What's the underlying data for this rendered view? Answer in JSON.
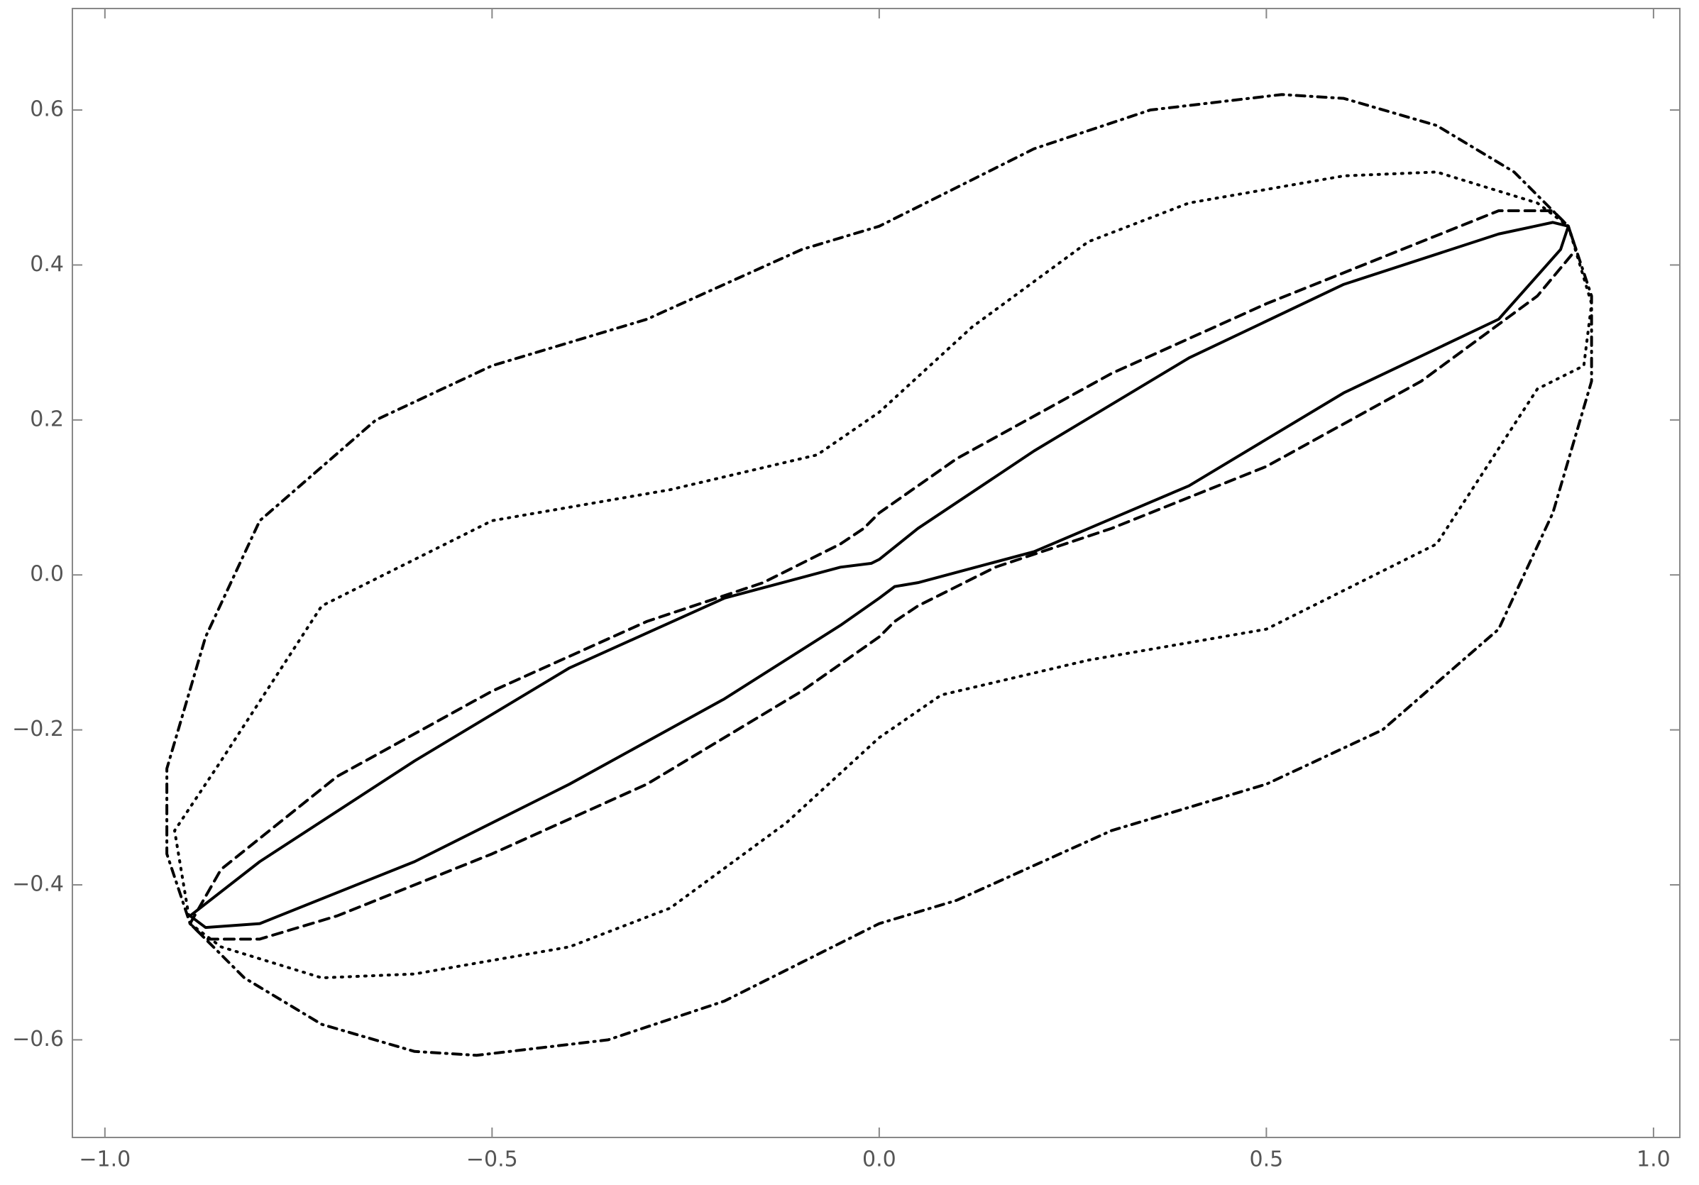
{
  "chart_data": {
    "type": "line",
    "xlim": [
      -1.042,
      1.034
    ],
    "ylim": [
      -0.726,
      0.731
    ],
    "xticks": [
      {
        "value": -1.0,
        "label": "−1.0"
      },
      {
        "value": -0.5,
        "label": "−0.5"
      },
      {
        "value": 0,
        "label": "0.0"
      },
      {
        "value": 0.5,
        "label": "0.5"
      },
      {
        "value": 1.0,
        "label": "1.0"
      }
    ],
    "yticks": [
      {
        "value": -0.6,
        "label": "−0.6"
      },
      {
        "value": -0.4,
        "label": "−0.4"
      },
      {
        "value": -0.2,
        "label": "−0.2"
      },
      {
        "value": 0,
        "label": "0.0"
      },
      {
        "value": 0.2,
        "label": "0.2"
      },
      {
        "value": 0.4,
        "label": "0.4"
      },
      {
        "value": 0.6,
        "label": "0.6"
      }
    ],
    "grid": false,
    "series": [
      {
        "color": "#000000",
        "style": "solid",
        "x": [
          -0.89,
          -0.8,
          -0.6,
          -0.4,
          -0.2,
          -0.05,
          -0.01,
          0,
          0.05,
          0.2,
          0.4,
          0.6,
          0.8,
          0.87,
          0.89,
          0.88,
          0.8,
          0.6,
          0.4,
          0.2,
          0.05,
          0.02,
          0,
          -0.05,
          -0.2,
          -0.4,
          -0.6,
          -0.8,
          -0.87,
          -0.89
        ],
        "values": [
          -0.44,
          -0.37,
          -0.24,
          -0.12,
          -0.03,
          0.01,
          0.015,
          0.02,
          0.06,
          0.16,
          0.28,
          0.375,
          0.44,
          0.455,
          0.45,
          0.42,
          0.33,
          0.235,
          0.115,
          0.03,
          -0.01,
          -0.015,
          -0.03,
          -0.065,
          -0.16,
          -0.27,
          -0.37,
          -0.45,
          -0.455,
          -0.44
        ]
      },
      {
        "color": "#000000",
        "style": "dashed",
        "x": [
          -0.89,
          -0.85,
          -0.7,
          -0.5,
          -0.3,
          -0.15,
          -0.05,
          -0.02,
          0,
          0.1,
          0.3,
          0.5,
          0.7,
          0.8,
          0.87,
          0.89,
          0.9,
          0.85,
          0.7,
          0.5,
          0.3,
          0.15,
          0.05,
          0.02,
          0,
          -0.1,
          -0.3,
          -0.5,
          -0.7,
          -0.8,
          -0.87,
          -0.89
        ],
        "values": [
          -0.45,
          -0.38,
          -0.26,
          -0.15,
          -0.06,
          -0.01,
          0.04,
          0.06,
          0.08,
          0.15,
          0.26,
          0.35,
          0.43,
          0.47,
          0.47,
          0.45,
          0.42,
          0.36,
          0.25,
          0.14,
          0.06,
          0.01,
          -0.04,
          -0.06,
          -0.08,
          -0.15,
          -0.27,
          -0.36,
          -0.44,
          -0.47,
          -0.47,
          -0.45
        ]
      },
      {
        "color": "#000000",
        "style": "dotted",
        "x": [
          -0.89,
          -0.91,
          -0.85,
          -0.72,
          -0.5,
          -0.27,
          -0.08,
          0,
          0.12,
          0.27,
          0.4,
          0.6,
          0.72,
          0.85,
          0.89,
          0.92,
          0.91,
          0.85,
          0.72,
          0.5,
          0.27,
          0.08,
          0,
          -0.12,
          -0.27,
          -0.4,
          -0.6,
          -0.72,
          -0.85,
          -0.89
        ],
        "values": [
          -0.45,
          -0.33,
          -0.24,
          -0.04,
          0.07,
          0.11,
          0.155,
          0.21,
          0.32,
          0.43,
          0.48,
          0.515,
          0.52,
          0.48,
          0.45,
          0.35,
          0.27,
          0.24,
          0.04,
          -0.07,
          -0.11,
          -0.155,
          -0.21,
          -0.32,
          -0.43,
          -0.48,
          -0.515,
          -0.52,
          -0.48,
          -0.45
        ]
      },
      {
        "color": "#000000",
        "style": "dotdashed",
        "x": [
          -0.89,
          -0.92,
          -0.92,
          -0.87,
          -0.8,
          -0.65,
          -0.5,
          -0.3,
          -0.1,
          0,
          0.1,
          0.2,
          0.35,
          0.52,
          0.6,
          0.72,
          0.82,
          0.89,
          0.92,
          0.92,
          0.87,
          0.8,
          0.65,
          0.5,
          0.3,
          0.1,
          0,
          -0.1,
          -0.2,
          -0.35,
          -0.52,
          -0.6,
          -0.72,
          -0.82,
          -0.89
        ],
        "values": [
          -0.45,
          -0.36,
          -0.25,
          -0.08,
          0.07,
          0.2,
          0.27,
          0.33,
          0.42,
          0.45,
          0.5,
          0.55,
          0.6,
          0.62,
          0.615,
          0.58,
          0.52,
          0.45,
          0.36,
          0.25,
          0.08,
          -0.07,
          -0.2,
          -0.27,
          -0.33,
          -0.42,
          -0.45,
          -0.5,
          -0.55,
          -0.6,
          -0.62,
          -0.615,
          -0.58,
          -0.52,
          -0.45
        ]
      }
    ]
  }
}
